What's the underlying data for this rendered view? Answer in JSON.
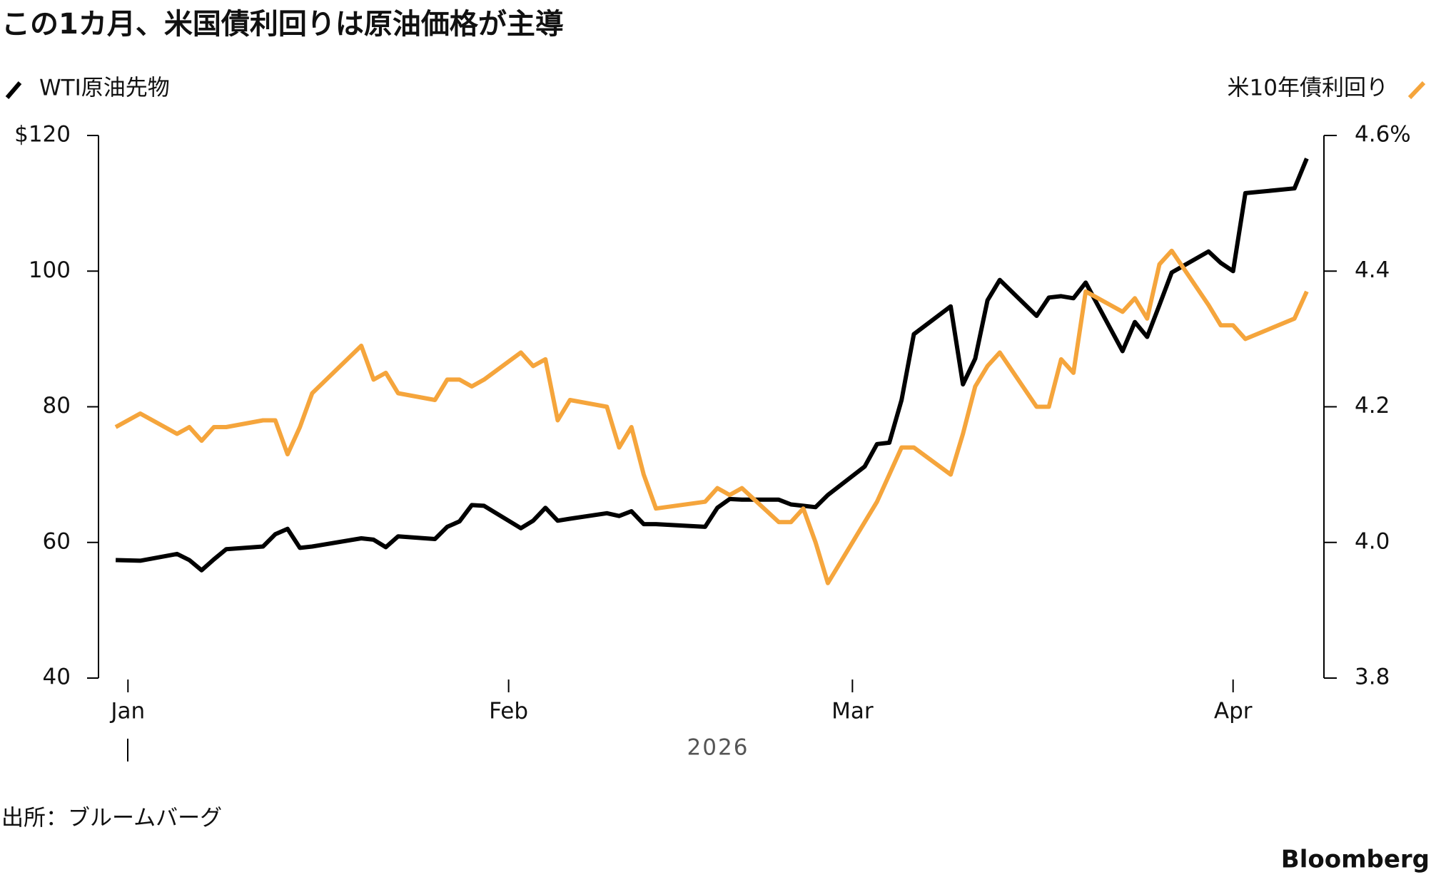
{
  "chart_data": {
    "type": "line",
    "title": "この1カ月、米国債利回りは原油価格が主導",
    "x_label": "2026",
    "source": "出所：ブルームバーグ",
    "brand": "Bloomberg",
    "x": [
      0,
      2,
      5,
      6,
      7,
      8,
      9,
      12,
      13,
      14,
      15,
      16,
      20,
      21,
      22,
      23,
      26,
      27,
      28,
      29,
      30,
      33,
      34,
      35,
      36,
      37,
      40,
      41,
      42,
      43,
      44,
      48,
      49,
      50,
      51,
      54,
      55,
      56,
      57,
      58,
      61,
      62,
      63,
      64,
      65,
      68,
      69,
      70,
      71,
      72,
      75,
      76,
      77,
      78,
      79,
      82,
      83,
      84,
      85,
      86,
      89,
      90,
      91,
      92,
      96,
      97
    ],
    "xlim": [
      -1.4,
      98.4
    ],
    "xticks": [
      {
        "value": 1,
        "label": "Jan"
      },
      {
        "value": 32,
        "label": "Feb"
      },
      {
        "value": 60,
        "label": "Mar"
      },
      {
        "value": 91,
        "label": "Apr"
      }
    ],
    "ylim": [
      40,
      120
    ],
    "yticks": [
      40,
      60,
      80,
      100,
      {
        "value": 120,
        "label": "$120"
      }
    ],
    "y2lim": [
      3.8,
      4.6
    ],
    "y2ticks": [
      3.8,
      {
        "value": 4,
        "label": "4.0"
      },
      4.2,
      4.4,
      {
        "value": 4.6,
        "label": "4.6%"
      }
    ],
    "series": [
      {
        "name": "WTI原油先物",
        "color": "#000000",
        "axis": "y",
        "values": [
          57.4,
          57.3,
          58.3,
          57.4,
          55.9,
          57.5,
          59.0,
          59.4,
          61.2,
          62.0,
          59.2,
          59.4,
          60.6,
          60.4,
          59.3,
          60.9,
          60.5,
          62.3,
          63.1,
          65.5,
          65.4,
          62.1,
          63.2,
          65.1,
          63.2,
          63.5,
          64.3,
          63.9,
          64.6,
          62.7,
          62.7,
          62.3,
          65.1,
          66.4,
          66.3,
          66.3,
          65.6,
          65.4,
          65.2,
          67.0,
          71.2,
          74.5,
          74.7,
          81.0,
          90.7,
          94.8,
          83.3,
          87.1,
          95.7,
          98.7,
          93.4,
          96.1,
          96.3,
          96.0,
          98.3,
          88.2,
          92.5,
          90.3,
          95.0,
          99.8,
          102.9,
          101.2,
          100.0,
          111.5,
          112.2,
          116.6
        ]
      },
      {
        "name": "米10年債利回り",
        "color": "#f5a53c",
        "axis": "y2",
        "values": [
          4.17,
          4.19,
          4.16,
          4.17,
          4.15,
          4.17,
          4.17,
          4.18,
          4.18,
          4.13,
          4.17,
          4.22,
          4.29,
          4.24,
          4.25,
          4.22,
          4.21,
          4.24,
          4.24,
          4.23,
          4.24,
          4.28,
          4.26,
          4.27,
          4.18,
          4.21,
          4.2,
          4.14,
          4.17,
          4.1,
          4.05,
          4.06,
          4.08,
          4.07,
          4.08,
          4.03,
          4.03,
          4.05,
          4.0,
          3.94,
          4.03,
          4.06,
          4.1,
          4.14,
          4.14,
          4.1,
          4.16,
          4.23,
          4.26,
          4.28,
          4.2,
          4.2,
          4.27,
          4.25,
          4.37,
          4.34,
          4.36,
          4.33,
          4.41,
          4.43,
          4.35,
          4.32,
          4.32,
          4.3,
          4.33,
          4.37
        ]
      }
    ]
  }
}
